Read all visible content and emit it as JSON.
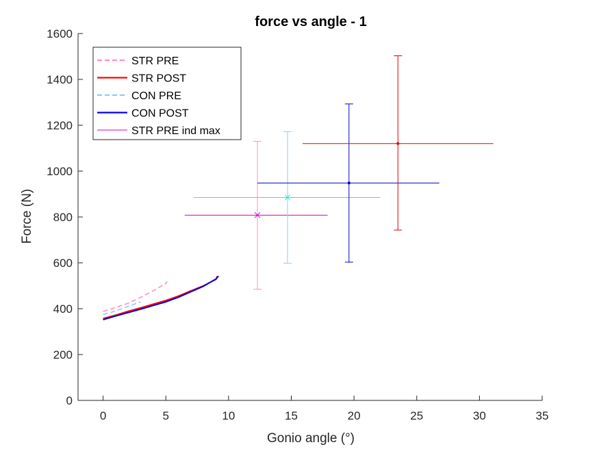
{
  "chart_data": {
    "type": "line",
    "title": "force vs angle - 1",
    "xlabel": "Gonio angle (°)",
    "ylabel": "Force (N)",
    "xlim": [
      -2,
      35
    ],
    "ylim": [
      0,
      1600
    ],
    "xticks": [
      0,
      5,
      10,
      15,
      20,
      25,
      30,
      35
    ],
    "yticks": [
      0,
      200,
      400,
      600,
      800,
      1000,
      1200,
      1400,
      1600
    ],
    "grid": false,
    "legend_position": "top-left",
    "legend": [
      {
        "label": "STR PRE",
        "color": "#ff8fc8",
        "style": "dashed"
      },
      {
        "label": "STR POST",
        "color": "#ff0000",
        "style": "solid"
      },
      {
        "label": "CON PRE",
        "color": "#87cefa",
        "style": "dashed"
      },
      {
        "label": "CON POST",
        "color": "#0000dd",
        "style": "solid"
      },
      {
        "label": "STR PRE ind max",
        "color": "#cc00cc",
        "style": "thin"
      }
    ],
    "series": [
      {
        "name": "STR PRE",
        "color": "#ff8fc8",
        "style": "dashed",
        "points": [
          [
            0,
            388
          ],
          [
            1,
            405
          ],
          [
            2,
            424
          ],
          [
            3,
            450
          ],
          [
            4,
            478
          ],
          [
            5,
            510
          ],
          [
            5.1,
            518
          ]
        ]
      },
      {
        "name": "CON PRE",
        "color": "#87cefa",
        "style": "dashed",
        "points": [
          [
            0,
            375
          ],
          [
            1,
            390
          ],
          [
            2,
            410
          ],
          [
            3,
            430
          ]
        ]
      },
      {
        "name": "STR POST",
        "color": "#ff0000",
        "style": "solid",
        "points": [
          [
            0,
            357
          ],
          [
            1,
            372
          ],
          [
            2,
            389
          ],
          [
            3,
            404
          ],
          [
            4,
            420
          ],
          [
            5,
            436
          ],
          [
            6,
            455
          ],
          [
            7,
            478
          ],
          [
            8,
            500
          ],
          [
            9,
            528
          ],
          [
            9.1,
            542
          ]
        ]
      },
      {
        "name": "CON POST",
        "color": "#0000dd",
        "style": "solid",
        "points": [
          [
            0,
            352
          ],
          [
            1,
            368
          ],
          [
            2,
            383
          ],
          [
            3,
            398
          ],
          [
            4,
            414
          ],
          [
            5,
            430
          ],
          [
            6,
            450
          ],
          [
            7,
            474
          ],
          [
            8,
            498
          ],
          [
            9,
            530
          ],
          [
            9.2,
            542
          ]
        ]
      }
    ],
    "error_points": [
      {
        "name": "STR PRE ind max",
        "color": "#cc00cc",
        "vcolor": "#ff8fc8",
        "marker": "x",
        "x": 12.3,
        "y": 808,
        "xerr": [
          6.5,
          17.9
        ],
        "yerr": [
          485,
          1130
        ]
      },
      {
        "name": "CON PRE",
        "color": "#3fdcdc",
        "vcolor": "#87cefa",
        "marker": "x",
        "x": 14.7,
        "y": 885,
        "xerr": [
          7.2,
          22.1
        ],
        "yerr": [
          598,
          1172
        ]
      },
      {
        "name": "CON POST",
        "color": "#0000cc",
        "vcolor": "#0000cc",
        "marker": "dot",
        "x": 19.6,
        "y": 948,
        "xerr": [
          12.3,
          26.8
        ],
        "yerr": [
          603,
          1293
        ]
      },
      {
        "name": "STR POST",
        "color": "#dd0000",
        "vcolor": "#dd0000",
        "marker": "dot",
        "x": 23.5,
        "y": 1120,
        "xerr": [
          15.9,
          31.1
        ],
        "yerr": [
          743,
          1503
        ]
      }
    ]
  }
}
